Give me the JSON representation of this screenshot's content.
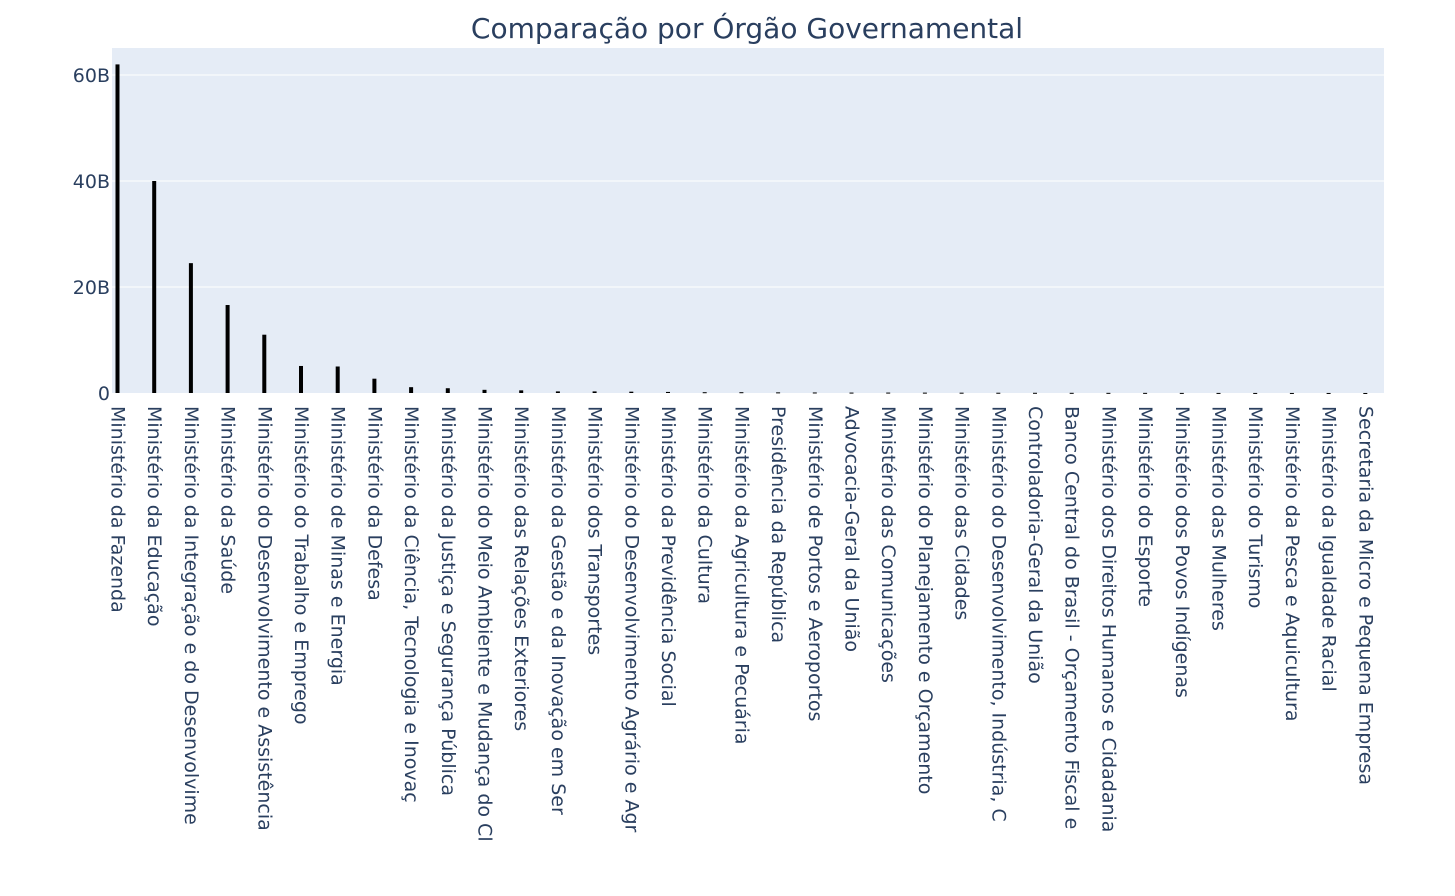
{
  "chart_data": {
    "type": "bar",
    "title": "Comparação por Órgão Governamental",
    "xlabel": "",
    "ylabel": "",
    "grid": true,
    "y_tick_labels": [
      "0",
      "20B",
      "40B",
      "60B"
    ],
    "y_tick_values": [
      0,
      20000000000,
      40000000000,
      60000000000
    ],
    "ylim": [
      0,
      65000000000
    ],
    "colors": {
      "bar": "#000000",
      "plot_bg": "#e5ecf6",
      "grid": "#ffffff",
      "text": "#2a3f5f"
    },
    "categories": [
      "Ministério da Fazenda",
      "Ministério da Educação",
      "Ministério da Integração e do Desenvolvime",
      "Ministério da Saúde",
      "Ministério do Desenvolvimento e Assistência",
      "Ministério do Trabalho e Emprego",
      "Ministério de Minas e Energia",
      "Ministério da Defesa",
      "Ministério da Ciência, Tecnologia e Inovaç",
      "Ministério da Justiça e Segurança Pública",
      "Ministério do Meio Ambiente e Mudança do Cl",
      "Ministério das Relações Exteriores",
      "Ministério da Gestão e da Inovação em Ser",
      "Ministério dos Transportes",
      "Ministério do Desenvolvimento Agrário e Agr",
      "Ministério da Previdência Social",
      "Ministério da Cultura",
      "Ministério da Agricultura e Pecuária",
      "Presidência da República",
      "Ministério de Portos e Aeroportos",
      "Advocacia-Geral da União",
      "Ministério das Comunicações",
      "Ministério do Planejamento e Orçamento",
      "Ministério das Cidades",
      "Ministério do Desenvolvimento, Indústria, C",
      "Controladoria-Geral da União",
      "Banco Central do Brasil - Orçamento Fiscal e",
      "Ministério dos Direitos Humanos e Cidadania",
      "Ministério do Esporte",
      "Ministério dos Povos Indígenas",
      "Ministério das Mulheres",
      "Ministério do Turismo",
      "Ministério da Pesca e Aquicultura",
      "Ministério da Igualdade Racial",
      "Secretaria da Micro e Pequena Empresa"
    ],
    "values": [
      62000000000,
      40000000000,
      24500000000,
      16600000000,
      11000000000,
      5100000000,
      5000000000,
      2700000000,
      1100000000,
      900000000,
      600000000,
      500000000,
      300000000,
      300000000,
      250000000,
      200000000,
      150000000,
      150000000,
      120000000,
      100000000,
      80000000,
      80000000,
      70000000,
      60000000,
      50000000,
      40000000,
      35000000,
      30000000,
      25000000,
      20000000,
      15000000,
      12000000,
      10000000,
      8000000,
      5000000
    ]
  }
}
